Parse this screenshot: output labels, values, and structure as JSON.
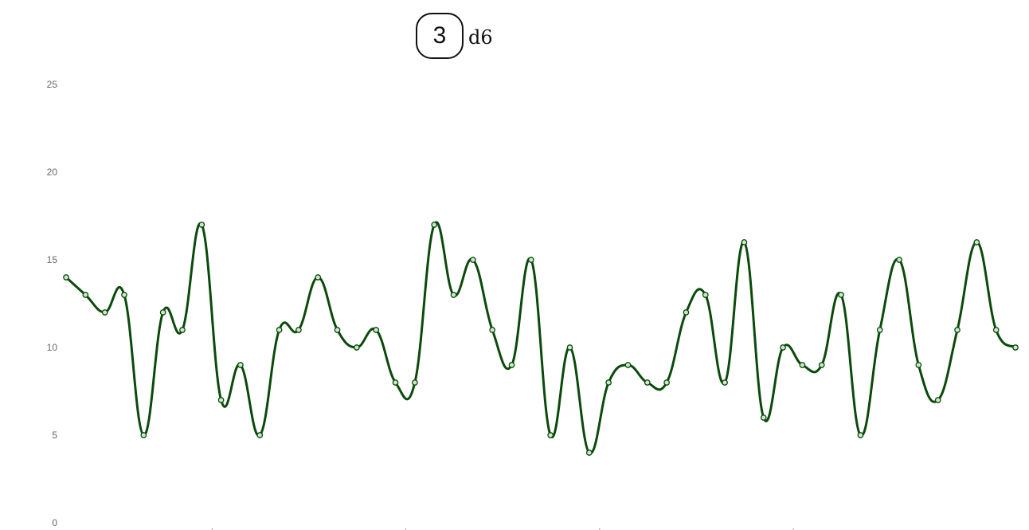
{
  "header": {
    "dice_count": "3",
    "die_type": "d6"
  },
  "chart_data": {
    "type": "line",
    "title": "",
    "xlabel": "",
    "ylabel": "",
    "ylim": [
      0,
      25
    ],
    "yticks": [
      0,
      5,
      10,
      15,
      20,
      25
    ],
    "grid": false,
    "legend": "none",
    "line_color": "#0b4a0b",
    "point_fill": "#cfe8cf",
    "series": [
      {
        "values": [
          14,
          13,
          12,
          13,
          5,
          12,
          11,
          17,
          7,
          9,
          5,
          11,
          11,
          14,
          11,
          10,
          11,
          8,
          8,
          17,
          13,
          15,
          11,
          9,
          15,
          5,
          10,
          4,
          8,
          9,
          8,
          8,
          12,
          13,
          8,
          16,
          6,
          10,
          9,
          9,
          13,
          5,
          11,
          15,
          9,
          7,
          11,
          16,
          11,
          10
        ]
      }
    ]
  }
}
